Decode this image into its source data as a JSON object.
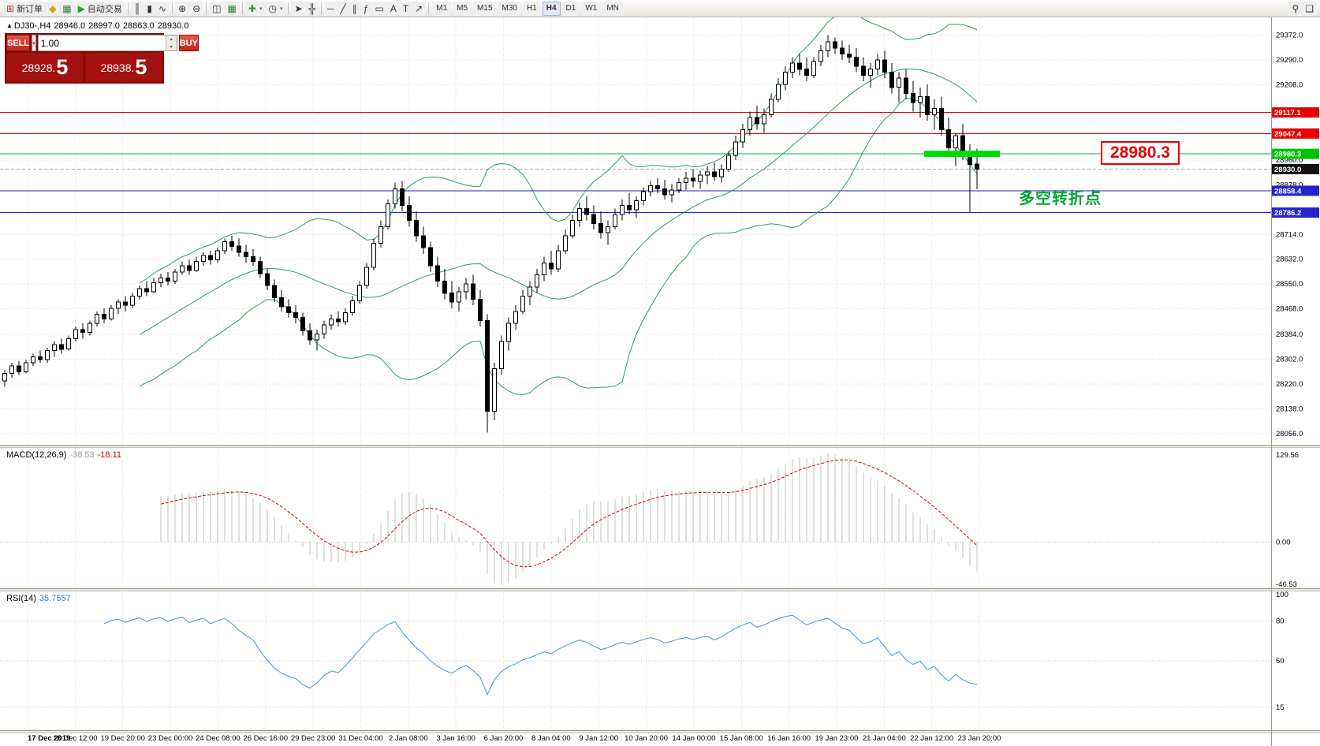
{
  "toolbar": {
    "buttons": [
      {
        "name": "new-order-button",
        "glyph": "⊞",
        "label": "新订单",
        "tint": "#b33"
      },
      {
        "name": "mql5-market-button",
        "glyph": "◆",
        "tint": "#d8a200"
      },
      {
        "name": "market-watch-button",
        "glyph": "▦",
        "tint": "#2e7d32"
      },
      {
        "name": "algo-trading-button",
        "glyph": "▶",
        "label": "自动交易",
        "tint": "#1fa81f"
      },
      {
        "sep": true
      },
      {
        "name": "bars-mode-button",
        "glyph": "║"
      },
      {
        "name": "candles-mode-button",
        "glyph": "▮"
      },
      {
        "name": "line-mode-button",
        "glyph": "∿"
      },
      {
        "sep": true
      },
      {
        "name": "zoom-in-button",
        "glyph": "⊕"
      },
      {
        "name": "zoom-out-button",
        "glyph": "⊖"
      },
      {
        "sep": true
      },
      {
        "name": "tile-windows-button",
        "glyph": "◫"
      },
      {
        "name": "grid-button",
        "glyph": "▦",
        "tint": "#2e7d32"
      },
      {
        "sep": true
      },
      {
        "name": "indicators-button",
        "glyph": "✚",
        "tint": "#1fa81f",
        "dropdown": true
      },
      {
        "name": "periods-button",
        "glyph": "◷",
        "dropdown": true
      },
      {
        "sep": true
      },
      {
        "name": "cursor-button",
        "glyph": "➤"
      },
      {
        "name": "crosshair-button",
        "glyph": "╬"
      },
      {
        "sep": true
      },
      {
        "name": "hline-button",
        "glyph": "─"
      },
      {
        "name": "trendline-button",
        "glyph": "╱"
      },
      {
        "name": "channel-button",
        "glyph": "∥"
      },
      {
        "name": "fibonacci-button",
        "glyph": "ƒ"
      },
      {
        "name": "shapes-button",
        "glyph": "▭"
      },
      {
        "name": "text-button",
        "glyph": "A"
      },
      {
        "name": "label-button",
        "glyph": "T"
      },
      {
        "name": "arrows-button",
        "glyph": "↗"
      },
      {
        "sep": true
      }
    ],
    "timeframes": [
      "M1",
      "M5",
      "M15",
      "M30",
      "H1",
      "H4",
      "D1",
      "W1",
      "MN"
    ],
    "active_timeframe": "H4",
    "right_buttons": [
      {
        "name": "search-button",
        "glyph": "⚲"
      },
      {
        "name": "chat-button",
        "glyph": "❏"
      }
    ]
  },
  "chart": {
    "title": {
      "marker": "▲",
      "symbol_period": "DJ30-,H4",
      "open": "28946.0",
      "high": "28997.0",
      "low": "28863.0",
      "close": "28930.0"
    },
    "trade_panel": {
      "sell_label": "SELL",
      "buy_label": "BUY",
      "volume": "1.00",
      "dropdown_glyph": "▾",
      "spin_up": "▴",
      "spin_down": "▾",
      "sell_int": "28928.",
      "sell_big": "5",
      "buy_int": "28938.",
      "buy_big": "5"
    },
    "big_price_label": "28980.3",
    "annotation": "多空转折点",
    "price_axis": {
      "ticks": [
        "29372.0",
        "29290.0",
        "29208.0",
        "28960.0",
        "28878.0",
        "28714.0",
        "28632.0",
        "28550.0",
        "28468.0",
        "28384.0",
        "28302.0",
        "28220.0",
        "28138.0",
        "28056.0"
      ]
    },
    "levels": [
      {
        "value": 29117.1,
        "label": "29117.1",
        "color": "#e60000",
        "badge": "#e60000"
      },
      {
        "value": 29047.4,
        "label": "29047.4",
        "color": "#e60000",
        "badge": "#e60000"
      },
      {
        "value": 28980.3,
        "label": "28980.3",
        "color": "#00b050",
        "badge": "#00c400",
        "highlight": true
      },
      {
        "value": 28930.0,
        "label": "28930.0",
        "color": "#a8a8a8",
        "style": "dash",
        "badge": "#111111"
      },
      {
        "value": 28858.4,
        "label": "28858.4",
        "color": "#2424cc",
        "badge": "#2424cc"
      },
      {
        "value": 28786.2,
        "label": "28786.2",
        "color": "#2424cc",
        "badge": "#2424cc"
      }
    ],
    "time_axis": {
      "labels": [
        "17 Dec 2019",
        "18 Dec 12:00",
        "19 Dec 20:00",
        "23 Dec 00:00",
        "24 Dec 08:00",
        "26 Dec 16:00",
        "29 Dec 23:00",
        "31 Dec 04:00",
        "2 Jan 08:00",
        "3 Jan 16:00",
        "6 Jan 20:00",
        "8 Jan 04:00",
        "9 Jan 12:00",
        "10 Jan 20:00",
        "14 Jan 00:00",
        "15 Jan 08:00",
        "16 Jan 16:00",
        "19 Jan 23:00",
        "21 Jan 04:00",
        "22 Jan 12:00",
        "23 Jan 20:00"
      ]
    }
  },
  "macd": {
    "label": "MACD(12,26,9)",
    "value_main": "-38.53",
    "value_signal": "-18.11",
    "axis_top": "129.56",
    "axis_zero": "0.00",
    "axis_bottom": "-46.53",
    "histogram_color": "#c2c2c2",
    "signal_color": "#e00000"
  },
  "rsi": {
    "label": "RSI(14)",
    "value": "35.7557",
    "line_color": "#3b97e8",
    "scale_labels": [
      "100",
      "80",
      "50",
      "15"
    ],
    "scale_values": [
      100,
      80,
      50,
      15
    ],
    "level_values": [
      80,
      50,
      15
    ]
  },
  "chart_data": {
    "type": "candlestick",
    "symbol": "DJ30",
    "timeframe": "H4",
    "overlays": {
      "bollinger": {
        "period": 20,
        "deviation": 2,
        "color": "#2aa05a"
      }
    },
    "indicators": [
      {
        "type": "MACD",
        "params": [
          12,
          26,
          9
        ]
      },
      {
        "type": "RSI",
        "params": [
          14
        ]
      }
    ],
    "ohlc": [
      [
        28230,
        28265,
        28210,
        28255
      ],
      [
        28255,
        28290,
        28240,
        28280
      ],
      [
        28280,
        28295,
        28250,
        28260
      ],
      [
        28260,
        28300,
        28255,
        28290
      ],
      [
        28290,
        28320,
        28280,
        28310
      ],
      [
        28310,
        28330,
        28290,
        28300
      ],
      [
        28300,
        28340,
        28290,
        28330
      ],
      [
        28330,
        28360,
        28310,
        28350
      ],
      [
        28350,
        28370,
        28320,
        28335
      ],
      [
        28335,
        28380,
        28330,
        28370
      ],
      [
        28370,
        28410,
        28360,
        28400
      ],
      [
        28400,
        28420,
        28370,
        28390
      ],
      [
        28390,
        28430,
        28380,
        28420
      ],
      [
        28420,
        28460,
        28410,
        28450
      ],
      [
        28450,
        28470,
        28420,
        28435
      ],
      [
        28435,
        28480,
        28430,
        28470
      ],
      [
        28470,
        28500,
        28450,
        28490
      ],
      [
        28490,
        28510,
        28460,
        28480
      ],
      [
        28480,
        28520,
        28470,
        28510
      ],
      [
        28510,
        28545,
        28500,
        28535
      ],
      [
        28535,
        28560,
        28510,
        28525
      ],
      [
        28525,
        28570,
        28520,
        28555
      ],
      [
        28555,
        28585,
        28540,
        28570
      ],
      [
        28570,
        28590,
        28545,
        28560
      ],
      [
        28560,
        28600,
        28550,
        28590
      ],
      [
        28590,
        28625,
        28580,
        28610
      ],
      [
        28610,
        28630,
        28580,
        28595
      ],
      [
        28595,
        28640,
        28590,
        28625
      ],
      [
        28625,
        28655,
        28610,
        28645
      ],
      [
        28645,
        28660,
        28615,
        28630
      ],
      [
        28630,
        28670,
        28620,
        28660
      ],
      [
        28660,
        28700,
        28650,
        28690
      ],
      [
        28690,
        28710,
        28660,
        28675
      ],
      [
        28675,
        28700,
        28640,
        28655
      ],
      [
        28655,
        28680,
        28620,
        28640
      ],
      [
        28640,
        28665,
        28610,
        28625
      ],
      [
        28625,
        28640,
        28570,
        28585
      ],
      [
        28585,
        28600,
        28530,
        28545
      ],
      [
        28545,
        28565,
        28490,
        28505
      ],
      [
        28505,
        28530,
        28460,
        28475
      ],
      [
        28475,
        28500,
        28440,
        28455
      ],
      [
        28455,
        28480,
        28420,
        28440
      ],
      [
        28440,
        28455,
        28380,
        28395
      ],
      [
        28395,
        28420,
        28350,
        28365
      ],
      [
        28365,
        28400,
        28330,
        28385
      ],
      [
        28385,
        28430,
        28370,
        28415
      ],
      [
        28415,
        28450,
        28400,
        28435
      ],
      [
        28435,
        28460,
        28410,
        28425
      ],
      [
        28425,
        28470,
        28415,
        28455
      ],
      [
        28455,
        28510,
        28445,
        28495
      ],
      [
        28495,
        28560,
        28485,
        28545
      ],
      [
        28545,
        28620,
        28535,
        28605
      ],
      [
        28605,
        28700,
        28595,
        28685
      ],
      [
        28685,
        28760,
        28670,
        28740
      ],
      [
        28740,
        28830,
        28730,
        28815
      ],
      [
        28815,
        28885,
        28800,
        28865
      ],
      [
        28865,
        28890,
        28790,
        28810
      ],
      [
        28810,
        28840,
        28740,
        28760
      ],
      [
        28760,
        28790,
        28690,
        28710
      ],
      [
        28710,
        28740,
        28650,
        28670
      ],
      [
        28670,
        28690,
        28590,
        28610
      ],
      [
        28610,
        28640,
        28540,
        28560
      ],
      [
        28560,
        28600,
        28500,
        28520
      ],
      [
        28520,
        28560,
        28470,
        28490
      ],
      [
        28490,
        28540,
        28460,
        28525
      ],
      [
        28525,
        28570,
        28500,
        28550
      ],
      [
        28550,
        28580,
        28480,
        28500
      ],
      [
        28500,
        28530,
        28410,
        28430
      ],
      [
        28430,
        28450,
        28060,
        28130
      ],
      [
        28130,
        28290,
        28100,
        28270
      ],
      [
        28270,
        28380,
        28250,
        28360
      ],
      [
        28360,
        28440,
        28330,
        28420
      ],
      [
        28420,
        28480,
        28400,
        28460
      ],
      [
        28460,
        28530,
        28450,
        28510
      ],
      [
        28510,
        28560,
        28480,
        28540
      ],
      [
        28540,
        28600,
        28520,
        28580
      ],
      [
        28580,
        28640,
        28560,
        28620
      ],
      [
        28620,
        28660,
        28580,
        28600
      ],
      [
        28600,
        28680,
        28590,
        28660
      ],
      [
        28660,
        28730,
        28650,
        28710
      ],
      [
        28710,
        28780,
        28700,
        28760
      ],
      [
        28760,
        28820,
        28740,
        28800
      ],
      [
        28800,
        28840,
        28760,
        28780
      ],
      [
        28780,
        28810,
        28730,
        28750
      ],
      [
        28750,
        28790,
        28700,
        28720
      ],
      [
        28720,
        28760,
        28680,
        28740
      ],
      [
        28740,
        28800,
        28730,
        28780
      ],
      [
        28780,
        28830,
        28760,
        28810
      ],
      [
        28810,
        28850,
        28780,
        28795
      ],
      [
        28795,
        28840,
        28770,
        28825
      ],
      [
        28825,
        28870,
        28810,
        28855
      ],
      [
        28855,
        28890,
        28840,
        28875
      ],
      [
        28875,
        28900,
        28850,
        28865
      ],
      [
        28865,
        28895,
        28830,
        28845
      ],
      [
        28845,
        28880,
        28820,
        28860
      ],
      [
        28860,
        28900,
        28850,
        28885
      ],
      [
        28885,
        28920,
        28860,
        28900
      ],
      [
        28900,
        28930,
        28870,
        28890
      ],
      [
        28890,
        28925,
        28865,
        28910
      ],
      [
        28910,
        28940,
        28880,
        28920
      ],
      [
        28920,
        28950,
        28890,
        28905
      ],
      [
        28905,
        28945,
        28885,
        28930
      ],
      [
        28930,
        28990,
        28920,
        28975
      ],
      [
        28975,
        29040,
        28960,
        29020
      ],
      [
        29020,
        29080,
        29000,
        29060
      ],
      [
        29060,
        29120,
        29040,
        29100
      ],
      [
        29100,
        29140,
        29060,
        29080
      ],
      [
        29080,
        29130,
        29050,
        29110
      ],
      [
        29110,
        29180,
        29100,
        29160
      ],
      [
        29160,
        29230,
        29150,
        29210
      ],
      [
        29210,
        29270,
        29190,
        29250
      ],
      [
        29250,
        29300,
        29230,
        29280
      ],
      [
        29280,
        29310,
        29240,
        29260
      ],
      [
        29260,
        29300,
        29220,
        29240
      ],
      [
        29240,
        29300,
        29230,
        29285
      ],
      [
        29285,
        29340,
        29270,
        29320
      ],
      [
        29320,
        29372,
        29300,
        29350
      ],
      [
        29350,
        29365,
        29310,
        29330
      ],
      [
        29330,
        29355,
        29290,
        29310
      ],
      [
        29310,
        29340,
        29280,
        29300
      ],
      [
        29300,
        29330,
        29250,
        29270
      ],
      [
        29270,
        29300,
        29220,
        29240
      ],
      [
        29240,
        29280,
        29200,
        29260
      ],
      [
        29260,
        29310,
        29240,
        29290
      ],
      [
        29290,
        29320,
        29230,
        29250
      ],
      [
        29250,
        29280,
        29180,
        29200
      ],
      [
        29200,
        29250,
        29150,
        29230
      ],
      [
        29230,
        29260,
        29160,
        29180
      ],
      [
        29180,
        29220,
        29120,
        29150
      ],
      [
        29150,
        29200,
        29100,
        29170
      ],
      [
        29170,
        29210,
        29090,
        29110
      ],
      [
        29110,
        29160,
        29060,
        29130
      ],
      [
        29130,
        29170,
        29040,
        29060
      ],
      [
        29060,
        29100,
        28980,
        29000
      ],
      [
        29000,
        29050,
        28940,
        29040
      ],
      [
        29040,
        29080,
        28960,
        28985
      ],
      [
        28985,
        29012,
        28786,
        28946
      ],
      [
        28946,
        28997,
        28863,
        28930
      ]
    ]
  }
}
